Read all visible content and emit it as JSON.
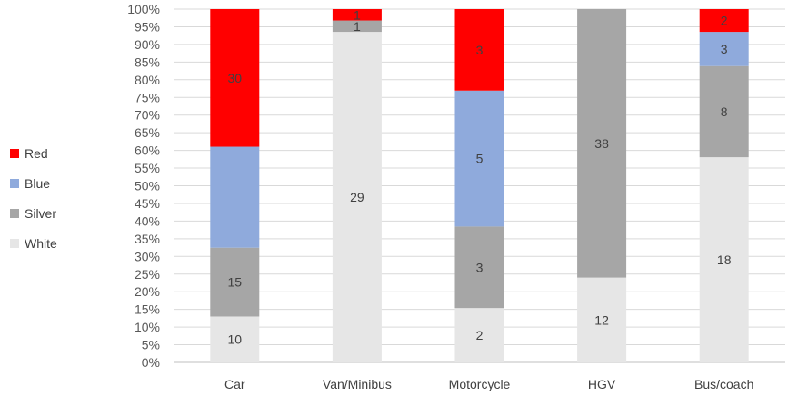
{
  "chart_data": {
    "type": "bar",
    "stacked": "percent",
    "categories": [
      "Car",
      "Van/Minibus",
      "Motorcycle",
      "HGV",
      "Bus/coach"
    ],
    "series": [
      {
        "name": "White",
        "color": "#E6E6E6",
        "values": [
          10,
          29,
          2,
          12,
          18
        ]
      },
      {
        "name": "Silver",
        "color": "#A6A6A6",
        "values": [
          15,
          1,
          3,
          38,
          8
        ]
      },
      {
        "name": "Blue",
        "color": "#8FAADC",
        "values": [
          22,
          0,
          5,
          0,
          3
        ]
      },
      {
        "name": "Red",
        "color": "#FF0000",
        "values": [
          30,
          1,
          3,
          0,
          2
        ]
      }
    ],
    "data_labels": {
      "White": [
        "10",
        "29",
        "2",
        "12",
        "18"
      ],
      "Silver": [
        "15",
        "1",
        "3",
        "38",
        "8"
      ],
      "Blue": [
        "",
        "",
        "5",
        "",
        "3"
      ],
      "Red": [
        "30",
        "1",
        "3",
        "",
        "2"
      ]
    },
    "y_ticks": [
      "0%",
      "5%",
      "10%",
      "15%",
      "20%",
      "25%",
      "30%",
      "35%",
      "40%",
      "45%",
      "50%",
      "55%",
      "60%",
      "65%",
      "70%",
      "75%",
      "80%",
      "85%",
      "90%",
      "95%",
      "100%"
    ],
    "ylim": [
      0,
      100
    ],
    "grid": true,
    "legend": {
      "position": "left",
      "order": [
        "Red",
        "Blue",
        "Silver",
        "White"
      ]
    },
    "title": "",
    "xlabel": "",
    "ylabel": ""
  }
}
